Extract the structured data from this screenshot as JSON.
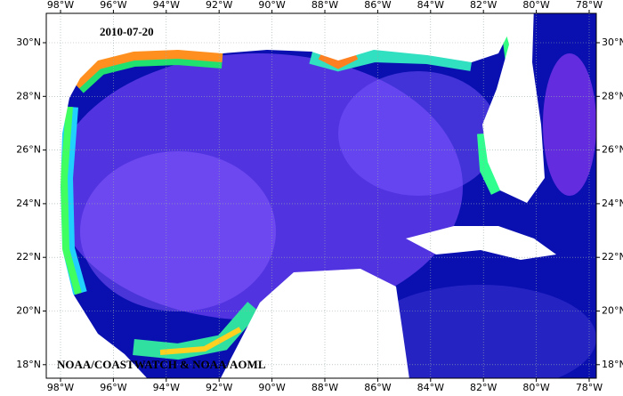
{
  "title": "2010-07-20",
  "credit": "NOAA/COASTWATCH & NOAA/AOML",
  "longitude_labels": [
    "98°W",
    "96°W",
    "94°W",
    "92°W",
    "90°W",
    "88°W",
    "86°W",
    "84°W",
    "82°W",
    "80°W",
    "78°W"
  ],
  "latitude_labels": [
    "30°N",
    "28°N",
    "26°N",
    "24°N",
    "22°N",
    "20°N",
    "18°N"
  ]
}
